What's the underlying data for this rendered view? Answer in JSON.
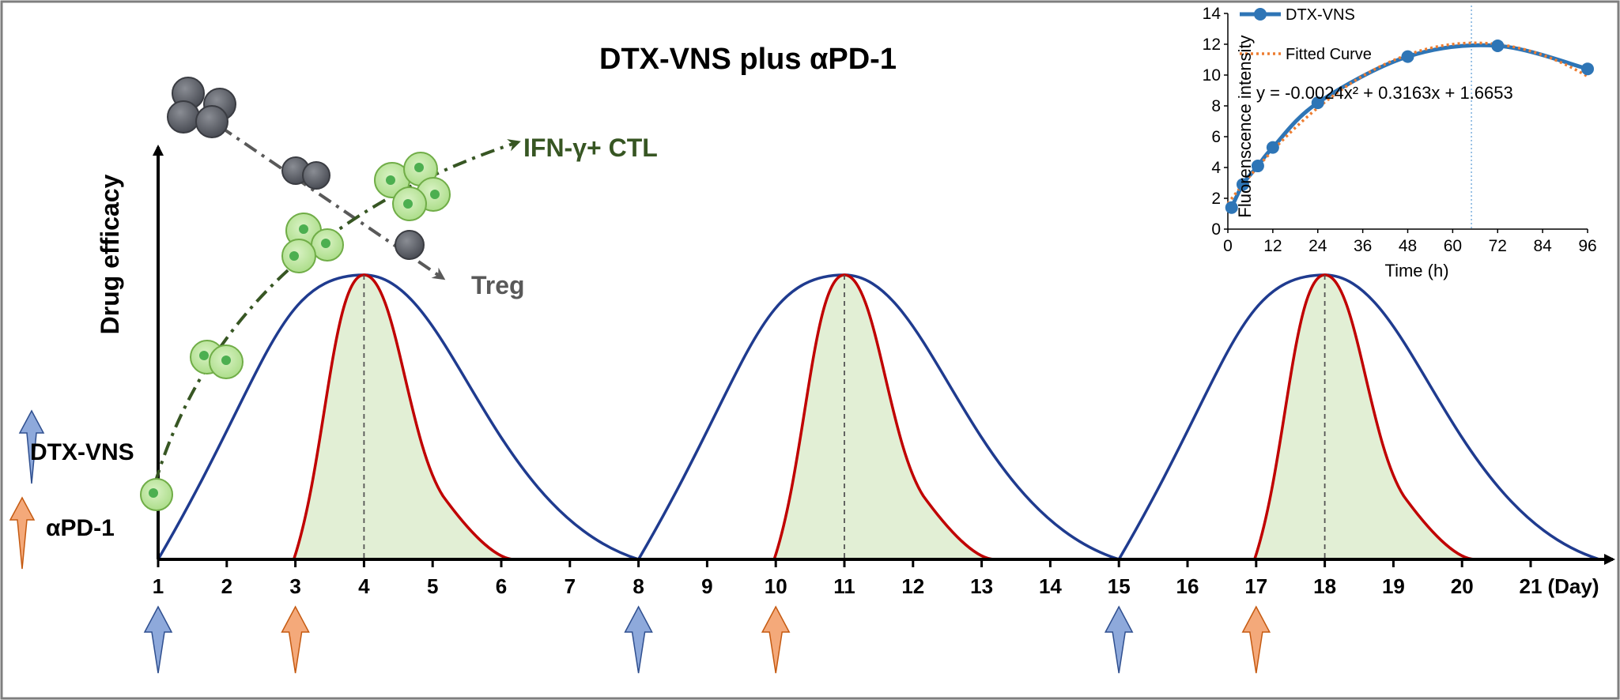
{
  "title": "DTX-VNS plus αPD-1",
  "y_axis_label": "Drug efficacy",
  "x_axis_unit": "(Day)",
  "day_ticks": [
    "1",
    "2",
    "3",
    "4",
    "5",
    "6",
    "7",
    "8",
    "9",
    "10",
    "11",
    "12",
    "13",
    "14",
    "15",
    "16",
    "17",
    "18",
    "19",
    "20",
    "21"
  ],
  "legend": {
    "dtx": "DTX-VNS",
    "apd1": "αPD-1"
  },
  "cell_labels": {
    "ctl": "IFN-γ+ CTL",
    "treg": "Treg"
  },
  "dosing": {
    "dtx_days": [
      1,
      8,
      15
    ],
    "apd1_days": [
      3,
      10,
      17
    ]
  },
  "peaks": {
    "dtx_curve_peak_days": [
      4,
      11,
      18
    ]
  },
  "colors": {
    "dtx_curve": "#1f3b8f",
    "apd1_curve": "#c00000",
    "apd1_fill": "#e2efd5",
    "dtx_arrow": "#8ea9db",
    "apd1_arrow": "#f4a97a",
    "ctl_text": "#375623",
    "treg_text": "#595959",
    "inset_series": "#2e75b6",
    "inset_fit": "#ed7d31"
  },
  "inset": {
    "legend_series": "DTX-VNS",
    "legend_fit": "Fitted Curve",
    "equation": "y = -0.0024x² + 0.3163x + 1.6653",
    "xlabel": "Time (h)",
    "ylabel": "Fluorenscence intensity",
    "x_ticks": [
      "0",
      "12",
      "24",
      "36",
      "48",
      "60",
      "72",
      "84",
      "96"
    ],
    "y_ticks": [
      "0",
      "2",
      "4",
      "6",
      "8",
      "10",
      "12",
      "14"
    ]
  },
  "chart_data": {
    "type": "line",
    "title": "",
    "xlabel": "Time (h)",
    "ylabel": "Fluorenscence intensity",
    "xlim": [
      0,
      96
    ],
    "ylim": [
      0,
      14
    ],
    "series": [
      {
        "name": "DTX-VNS",
        "x": [
          1,
          4,
          8,
          12,
          24,
          48,
          72,
          96
        ],
        "y": [
          1.4,
          2.9,
          4.1,
          5.3,
          8.2,
          11.2,
          11.9,
          10.4
        ]
      },
      {
        "name": "Fitted Curve",
        "equation": "y = -0.0024x² + 0.3163x + 1.6653",
        "coefficients": [
          -0.0024,
          0.3163,
          1.6653
        ]
      }
    ],
    "annotation": {
      "vertical_line_x": 65
    }
  }
}
